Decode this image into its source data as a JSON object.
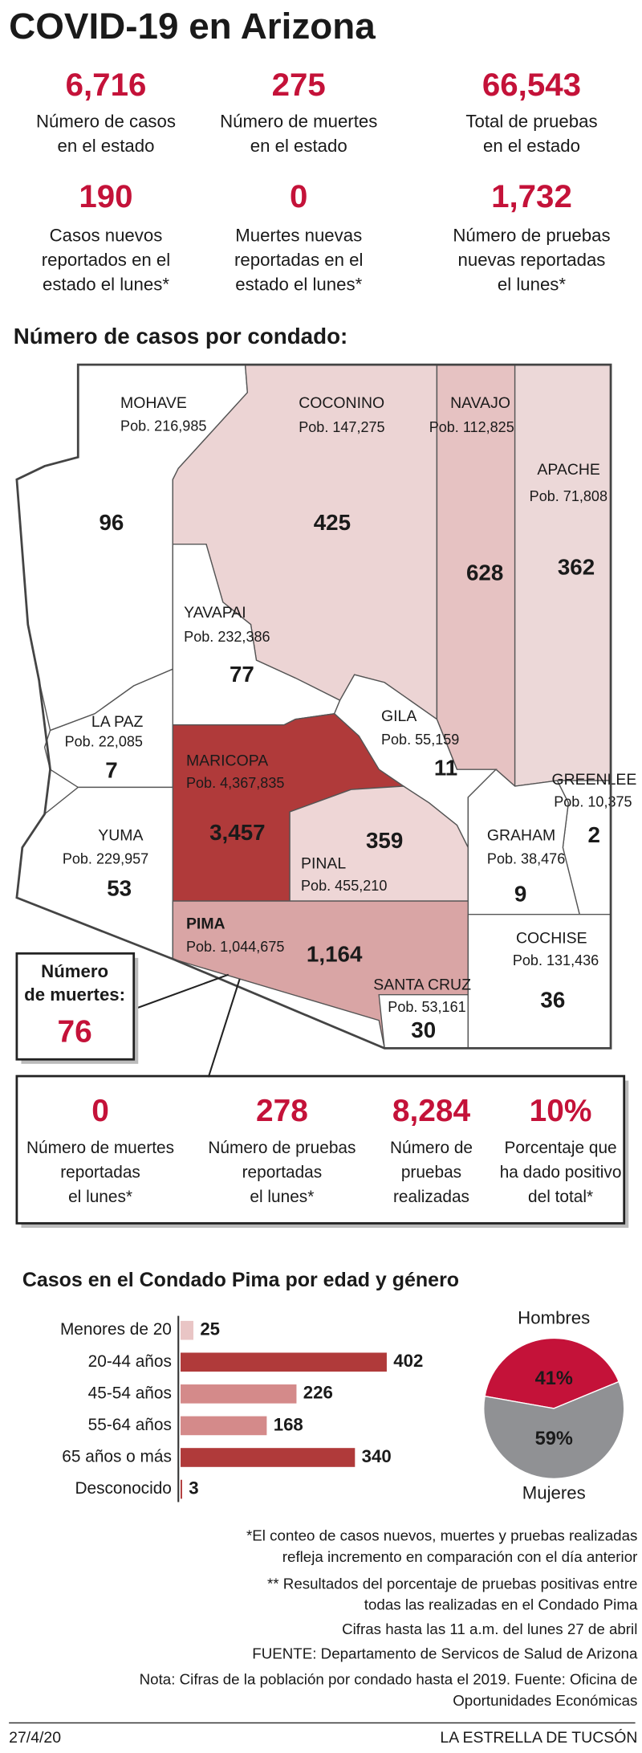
{
  "header": {
    "title": "COVID-19 en Arizona"
  },
  "state_stats": [
    {
      "value": "6,716",
      "label": [
        "Número de casos",
        "en el estado"
      ]
    },
    {
      "value": "275",
      "label": [
        "Número de muertes",
        "en el estado"
      ]
    },
    {
      "value": "66,543",
      "label": [
        "Total de pruebas",
        "en el estado"
      ]
    },
    {
      "value": "190",
      "label": [
        "Casos nuevos",
        "reportados en el",
        "estado el lunes*"
      ]
    },
    {
      "value": "0",
      "label": [
        "Muertes nuevas",
        "reportadas en el",
        "estado el lunes*"
      ]
    },
    {
      "value": "1,732",
      "label": [
        "Número de pruebas",
        "nuevas reportadas",
        "el lunes*"
      ]
    }
  ],
  "map": {
    "title": "Número de casos por condado:",
    "counties": [
      {
        "name": "MOHAVE",
        "population": "Pob. 216,985",
        "cases": "96",
        "color": "#ffffff"
      },
      {
        "name": "COCONINO",
        "population": "Pob. 147,275",
        "cases": "425",
        "color": "#ecd4d4"
      },
      {
        "name": "NAVAJO",
        "population": "Pob. 112,825",
        "cases": "628",
        "color": "#e6c2c2"
      },
      {
        "name": "APACHE",
        "population": "Pob. 71,808",
        "cases": "362",
        "color": "#ecd8d8"
      },
      {
        "name": "YAVAPAI",
        "population": "Pob. 232,386",
        "cases": "77",
        "color": "#ffffff"
      },
      {
        "name": "LA PAZ",
        "population": "Pob. 22,085",
        "cases": "7",
        "color": "#ffffff"
      },
      {
        "name": "GILA",
        "population": "Pob. 55,159",
        "cases": "11",
        "color": "#ffffff"
      },
      {
        "name": "GREENLEE",
        "population": "Pob. 10,375",
        "cases": "2",
        "color": "#ffffff"
      },
      {
        "name": "MARICOPA",
        "population": "Pob. 4,367,835",
        "cases": "3,457",
        "color": "#b03a3a"
      },
      {
        "name": "PINAL",
        "population": "Pob. 455,210",
        "cases": "359",
        "color": "#eed6d6"
      },
      {
        "name": "YUMA",
        "population": "Pob. 229,957",
        "cases": "53",
        "color": "#ffffff"
      },
      {
        "name": "GRAHAM",
        "population": "Pob. 38,476",
        "cases": "9",
        "color": "#ffffff"
      },
      {
        "name": "PIMA",
        "population": "Pob. 1,044,675",
        "cases": "1,164",
        "color": "#d9a5a5"
      },
      {
        "name": "SANTA CRUZ",
        "population": "Pob. 53,161",
        "cases": "30",
        "color": "#ffffff"
      },
      {
        "name": "COCHISE",
        "population": "Pob. 131,436",
        "cases": "36",
        "color": "#ffffff"
      }
    ],
    "deaths_callout": {
      "label": [
        "Número",
        "de muertes:"
      ],
      "value": "76"
    },
    "pima_stats": [
      {
        "value": "0",
        "label": [
          "Número de muertes",
          "reportadas",
          "el lunes*"
        ]
      },
      {
        "value": "278",
        "label": [
          "Número de pruebas",
          "reportadas",
          "el lunes*"
        ]
      },
      {
        "value": "8,284",
        "label": [
          "Número de",
          "pruebas",
          "realizadas"
        ]
      },
      {
        "value": "10%",
        "label": [
          "Porcentaje que",
          "ha dado positivo",
          "del total*"
        ]
      }
    ]
  },
  "chart_data": [
    {
      "type": "bar",
      "title": "Casos en el Condado Pima por edad y género",
      "categories": [
        "Menores de 20",
        "20-44 años",
        "45-54 años",
        "55-64 años",
        "65 años o más",
        "Desconocido"
      ],
      "values": [
        25,
        402,
        226,
        168,
        340,
        3
      ],
      "colors": [
        "#e9c5c5",
        "#b03a3a",
        "#d48a8a",
        "#d48a8a",
        "#b03a3a",
        "#b03a3a"
      ]
    },
    {
      "type": "pie",
      "categories": [
        "Hombres",
        "Mujeres"
      ],
      "values": [
        41,
        59
      ],
      "value_labels": [
        "41%",
        "59%"
      ],
      "colors": [
        "#c41239",
        "#909194"
      ]
    }
  ],
  "notes": [
    [
      "*El conteo de casos nuevos, muertes y pruebas realizadas",
      "refleja incremento en comparación con el día anterior"
    ],
    [
      "** Resultados del porcentaje de pruebas positivas entre",
      "todas las realizadas en el Condado Pima"
    ],
    [
      "Cifras hasta las 11 a.m. del lunes 27 de abril"
    ],
    [
      "FUENTE: Departamento de Servicos de Salud de Arizona"
    ],
    [
      "Nota: Cifras de la población por condado hasta el 2019. Fuente: Oficina de",
      "Oportunidades Económicas"
    ]
  ],
  "footer": {
    "date": "27/4/20",
    "publisher": "LA ESTRELLA DE TUCSÓN"
  }
}
